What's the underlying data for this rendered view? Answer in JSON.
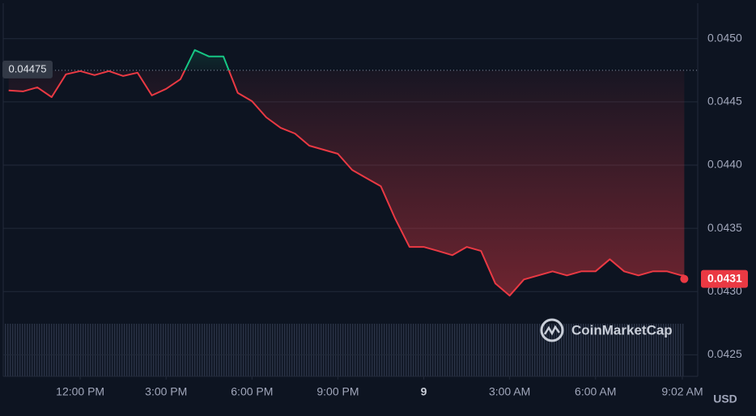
{
  "chart_data": {
    "type": "line",
    "x": [
      9.5,
      10,
      10.5,
      11,
      11.5,
      12,
      12.5,
      13,
      13.5,
      14,
      14.5,
      15,
      15.5,
      16,
      16.5,
      17,
      17.5,
      18,
      18.5,
      19,
      19.5,
      20,
      20.5,
      21,
      21.5,
      22,
      22.5,
      23,
      23.5,
      24,
      24.5,
      25,
      25.5,
      26,
      26.5,
      27,
      27.5,
      28,
      28.5,
      29,
      29.5,
      30,
      30.5,
      31,
      31.5,
      32,
      32.5,
      33,
      33.1
    ],
    "values": [
      0.04459,
      0.044583,
      0.044615,
      0.044538,
      0.044718,
      0.044744,
      0.044712,
      0.044744,
      0.044705,
      0.044731,
      0.044551,
      0.044603,
      0.044679,
      0.04491,
      0.044859,
      0.044859,
      0.044571,
      0.044506,
      0.044378,
      0.044295,
      0.04425,
      0.044154,
      0.044122,
      0.04409,
      0.043962,
      0.043897,
      0.043833,
      0.043577,
      0.043353,
      0.043353,
      0.043321,
      0.043288,
      0.043353,
      0.043321,
      0.043064,
      0.042968,
      0.043096,
      0.043128,
      0.04316,
      0.043128,
      0.04316,
      0.04316,
      0.043256,
      0.04316,
      0.043128,
      0.04316,
      0.04316,
      0.043128,
      0.043128
    ],
    "up_color": "#16c784",
    "down_color": "#ea3943",
    "baseline": 0.04475,
    "last_value": 0.0431,
    "xlim": [
      9.31,
      33.57
    ],
    "xticks": [
      {
        "value": 12,
        "label": "12:00 PM"
      },
      {
        "value": 15,
        "label": "3:00 PM"
      },
      {
        "value": 18,
        "label": "6:00 PM"
      },
      {
        "value": 21,
        "label": "9:00 PM"
      },
      {
        "value": 24,
        "label": "9"
      },
      {
        "value": 27,
        "label": "3:00 AM"
      },
      {
        "value": 30,
        "label": "6:00 AM"
      },
      {
        "value": 33.033,
        "label": "9:02 AM"
      }
    ],
    "ylim": [
      0.04233,
      0.04528
    ],
    "yticks": [
      {
        "value": 0.0425,
        "label": "0.0425"
      },
      {
        "value": 0.043,
        "label": "0.0430"
      },
      {
        "value": 0.0435,
        "label": "0.0435"
      },
      {
        "value": 0.044,
        "label": "0.0440"
      },
      {
        "value": 0.0445,
        "label": "0.0445"
      },
      {
        "value": 0.045,
        "label": "0.0450"
      }
    ],
    "grid": true,
    "unit": "USD",
    "watermark": "CoinMarketCap"
  }
}
